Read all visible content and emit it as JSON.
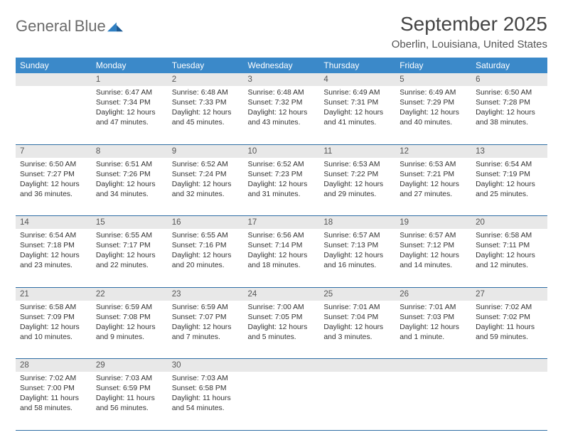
{
  "brand": {
    "name1": "General",
    "name2": "Blue"
  },
  "title": "September 2025",
  "location": "Oberlin, Louisiana, United States",
  "colors": {
    "header_bg": "#3b89c9",
    "header_fg": "#ffffff",
    "daynum_bg": "#e8e8e8",
    "rule": "#2e6da4",
    "brand_gray": "#6b6b6b",
    "brand_blue": "#2f7fc2",
    "page_bg": "#ffffff"
  },
  "fonts": {
    "title_pt": 28,
    "location_pt": 15,
    "dayhead_pt": 12,
    "daynum_pt": 11.5,
    "body_pt": 10.4
  },
  "day_headers": [
    "Sunday",
    "Monday",
    "Tuesday",
    "Wednesday",
    "Thursday",
    "Friday",
    "Saturday"
  ],
  "weeks": [
    [
      {
        "n": "",
        "sr": "",
        "ss": "",
        "dl": ""
      },
      {
        "n": "1",
        "sr": "6:47 AM",
        "ss": "7:34 PM",
        "dl": "12 hours and 47 minutes."
      },
      {
        "n": "2",
        "sr": "6:48 AM",
        "ss": "7:33 PM",
        "dl": "12 hours and 45 minutes."
      },
      {
        "n": "3",
        "sr": "6:48 AM",
        "ss": "7:32 PM",
        "dl": "12 hours and 43 minutes."
      },
      {
        "n": "4",
        "sr": "6:49 AM",
        "ss": "7:31 PM",
        "dl": "12 hours and 41 minutes."
      },
      {
        "n": "5",
        "sr": "6:49 AM",
        "ss": "7:29 PM",
        "dl": "12 hours and 40 minutes."
      },
      {
        "n": "6",
        "sr": "6:50 AM",
        "ss": "7:28 PM",
        "dl": "12 hours and 38 minutes."
      }
    ],
    [
      {
        "n": "7",
        "sr": "6:50 AM",
        "ss": "7:27 PM",
        "dl": "12 hours and 36 minutes."
      },
      {
        "n": "8",
        "sr": "6:51 AM",
        "ss": "7:26 PM",
        "dl": "12 hours and 34 minutes."
      },
      {
        "n": "9",
        "sr": "6:52 AM",
        "ss": "7:24 PM",
        "dl": "12 hours and 32 minutes."
      },
      {
        "n": "10",
        "sr": "6:52 AM",
        "ss": "7:23 PM",
        "dl": "12 hours and 31 minutes."
      },
      {
        "n": "11",
        "sr": "6:53 AM",
        "ss": "7:22 PM",
        "dl": "12 hours and 29 minutes."
      },
      {
        "n": "12",
        "sr": "6:53 AM",
        "ss": "7:21 PM",
        "dl": "12 hours and 27 minutes."
      },
      {
        "n": "13",
        "sr": "6:54 AM",
        "ss": "7:19 PM",
        "dl": "12 hours and 25 minutes."
      }
    ],
    [
      {
        "n": "14",
        "sr": "6:54 AM",
        "ss": "7:18 PM",
        "dl": "12 hours and 23 minutes."
      },
      {
        "n": "15",
        "sr": "6:55 AM",
        "ss": "7:17 PM",
        "dl": "12 hours and 22 minutes."
      },
      {
        "n": "16",
        "sr": "6:55 AM",
        "ss": "7:16 PM",
        "dl": "12 hours and 20 minutes."
      },
      {
        "n": "17",
        "sr": "6:56 AM",
        "ss": "7:14 PM",
        "dl": "12 hours and 18 minutes."
      },
      {
        "n": "18",
        "sr": "6:57 AM",
        "ss": "7:13 PM",
        "dl": "12 hours and 16 minutes."
      },
      {
        "n": "19",
        "sr": "6:57 AM",
        "ss": "7:12 PM",
        "dl": "12 hours and 14 minutes."
      },
      {
        "n": "20",
        "sr": "6:58 AM",
        "ss": "7:11 PM",
        "dl": "12 hours and 12 minutes."
      }
    ],
    [
      {
        "n": "21",
        "sr": "6:58 AM",
        "ss": "7:09 PM",
        "dl": "12 hours and 10 minutes."
      },
      {
        "n": "22",
        "sr": "6:59 AM",
        "ss": "7:08 PM",
        "dl": "12 hours and 9 minutes."
      },
      {
        "n": "23",
        "sr": "6:59 AM",
        "ss": "7:07 PM",
        "dl": "12 hours and 7 minutes."
      },
      {
        "n": "24",
        "sr": "7:00 AM",
        "ss": "7:05 PM",
        "dl": "12 hours and 5 minutes."
      },
      {
        "n": "25",
        "sr": "7:01 AM",
        "ss": "7:04 PM",
        "dl": "12 hours and 3 minutes."
      },
      {
        "n": "26",
        "sr": "7:01 AM",
        "ss": "7:03 PM",
        "dl": "12 hours and 1 minute."
      },
      {
        "n": "27",
        "sr": "7:02 AM",
        "ss": "7:02 PM",
        "dl": "11 hours and 59 minutes."
      }
    ],
    [
      {
        "n": "28",
        "sr": "7:02 AM",
        "ss": "7:00 PM",
        "dl": "11 hours and 58 minutes."
      },
      {
        "n": "29",
        "sr": "7:03 AM",
        "ss": "6:59 PM",
        "dl": "11 hours and 56 minutes."
      },
      {
        "n": "30",
        "sr": "7:03 AM",
        "ss": "6:58 PM",
        "dl": "11 hours and 54 minutes."
      },
      {
        "n": "",
        "sr": "",
        "ss": "",
        "dl": ""
      },
      {
        "n": "",
        "sr": "",
        "ss": "",
        "dl": ""
      },
      {
        "n": "",
        "sr": "",
        "ss": "",
        "dl": ""
      },
      {
        "n": "",
        "sr": "",
        "ss": "",
        "dl": ""
      }
    ]
  ],
  "labels": {
    "sunrise": "Sunrise:",
    "sunset": "Sunset:",
    "daylight": "Daylight:"
  }
}
